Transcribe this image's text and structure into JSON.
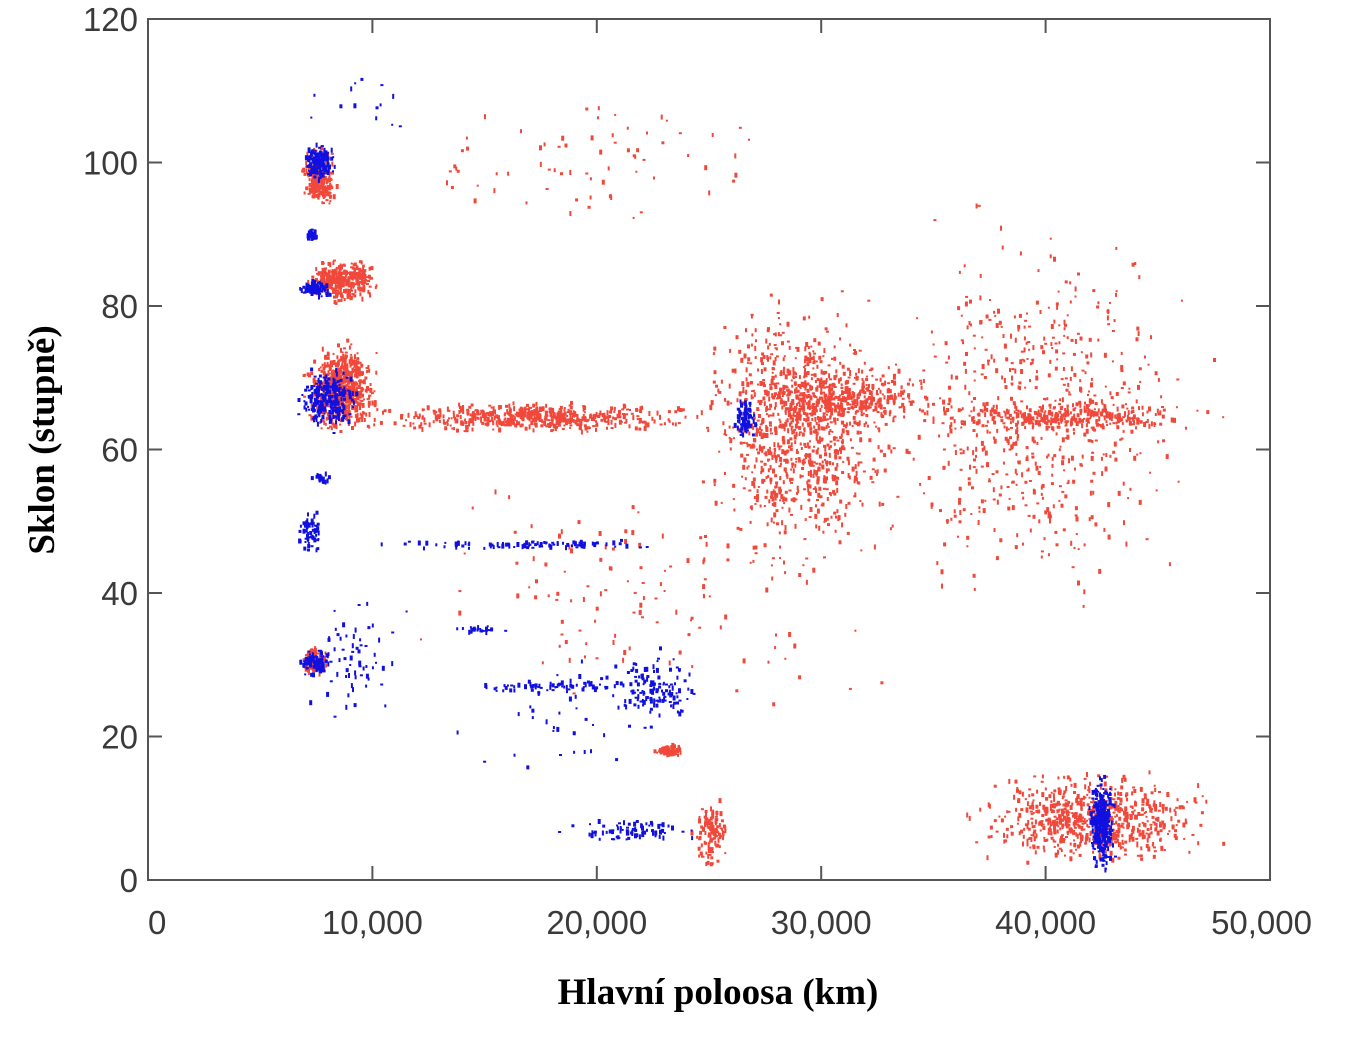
{
  "chart_data": {
    "type": "scatter",
    "title": "",
    "xlabel": "Hlavní poloosa (km)",
    "ylabel": "Sklon (stupně)",
    "xlim": [
      0,
      50000
    ],
    "ylim": [
      0,
      120
    ],
    "x_ticks": [
      0,
      10000,
      20000,
      30000,
      40000,
      50000
    ],
    "x_tick_labels": [
      "0",
      "10,000",
      "20,000",
      "30,000",
      "40,000",
      "50,000"
    ],
    "y_ticks": [
      0,
      20,
      40,
      60,
      80,
      100,
      120
    ],
    "y_tick_labels": [
      "0",
      "20",
      "40",
      "60",
      "80",
      "100",
      "120"
    ],
    "grid": false,
    "legend": "none",
    "colors": {
      "red_series": "#f0483a",
      "blue_series": "#1010e0",
      "frame": "#555555"
    },
    "series": [
      {
        "name": "red",
        "color": "#f0483a",
        "clusters": [
          {
            "x": [
              6800,
              8500
            ],
            "y": [
              93,
              103
            ],
            "n": 260
          },
          {
            "x": [
              6800,
              10500
            ],
            "y": [
              80,
              87
            ],
            "n": 330
          },
          {
            "x": [
              6800,
              10500
            ],
            "y": [
              61,
              76
            ],
            "n": 650
          },
          {
            "x": [
              8500,
              26000
            ],
            "y": [
              62,
              67
            ],
            "n": 550
          },
          {
            "x": [
              24000,
              34000
            ],
            "y": [
              40,
              85
            ],
            "n": 900
          },
          {
            "x": [
              26000,
              36000
            ],
            "y": [
              62,
              72
            ],
            "n": 400
          },
          {
            "x": [
              31000,
              48000
            ],
            "y": [
              35,
              95
            ],
            "n": 600
          },
          {
            "x": [
              34000,
              48500
            ],
            "y": [
              62,
              67
            ],
            "n": 300
          },
          {
            "x": [
              6700,
              8200
            ],
            "y": [
              28,
              33
            ],
            "n": 130
          },
          {
            "x": [
              22500,
              24000
            ],
            "y": [
              17,
              19
            ],
            "n": 70
          },
          {
            "x": [
              24200,
              26000
            ],
            "y": [
              1,
              12
            ],
            "n": 120
          },
          {
            "x": [
              36000,
              48500
            ],
            "y": [
              1,
              16
            ],
            "n": 700
          },
          {
            "x": [
              10000,
              34000
            ],
            "y": [
              18,
              62
            ],
            "n": 120
          },
          {
            "x": [
              9000,
              32000
            ],
            "y": [
              88,
              112
            ],
            "n": 70
          }
        ]
      },
      {
        "name": "blue",
        "color": "#1010e0",
        "clusters": [
          {
            "x": [
              6800,
              8500
            ],
            "y": [
              97,
              103
            ],
            "n": 150
          },
          {
            "x": [
              7000,
              7600
            ],
            "y": [
              89,
              91
            ],
            "n": 30
          },
          {
            "x": [
              6600,
              8200
            ],
            "y": [
              81,
              84
            ],
            "n": 90
          },
          {
            "x": [
              6500,
              9500
            ],
            "y": [
              62,
              72
            ],
            "n": 250
          },
          {
            "x": [
              7200,
              8200
            ],
            "y": [
              55,
              57
            ],
            "n": 25
          },
          {
            "x": [
              6500,
              8000
            ],
            "y": [
              44,
              53
            ],
            "n": 60
          },
          {
            "x": [
              9000,
              24500
            ],
            "y": [
              46,
              47.5
            ],
            "n": 90
          },
          {
            "x": [
              6500,
              8500
            ],
            "y": [
              28,
              33
            ],
            "n": 90
          },
          {
            "x": [
              13000,
              16500
            ],
            "y": [
              34,
              35.5
            ],
            "n": 25
          },
          {
            "x": [
              13000,
              25000
            ],
            "y": [
              26,
              28
            ],
            "n": 70
          },
          {
            "x": [
              20000,
              25000
            ],
            "y": [
              20,
              33
            ],
            "n": 120
          },
          {
            "x": [
              6500,
              12000
            ],
            "y": [
              20,
              41
            ],
            "n": 60
          },
          {
            "x": [
              18000,
              25000
            ],
            "y": [
              5,
              9
            ],
            "n": 80
          },
          {
            "x": [
              26000,
              27200
            ],
            "y": [
              61,
              68
            ],
            "n": 80
          },
          {
            "x": [
              41800,
              43200
            ],
            "y": [
              0,
              16
            ],
            "n": 300
          },
          {
            "x": [
              13000,
              25000
            ],
            "y": [
              10,
              35
            ],
            "n": 40
          },
          {
            "x": [
              6300,
              12000
            ],
            "y": [
              100,
              115
            ],
            "n": 15
          }
        ]
      }
    ]
  }
}
